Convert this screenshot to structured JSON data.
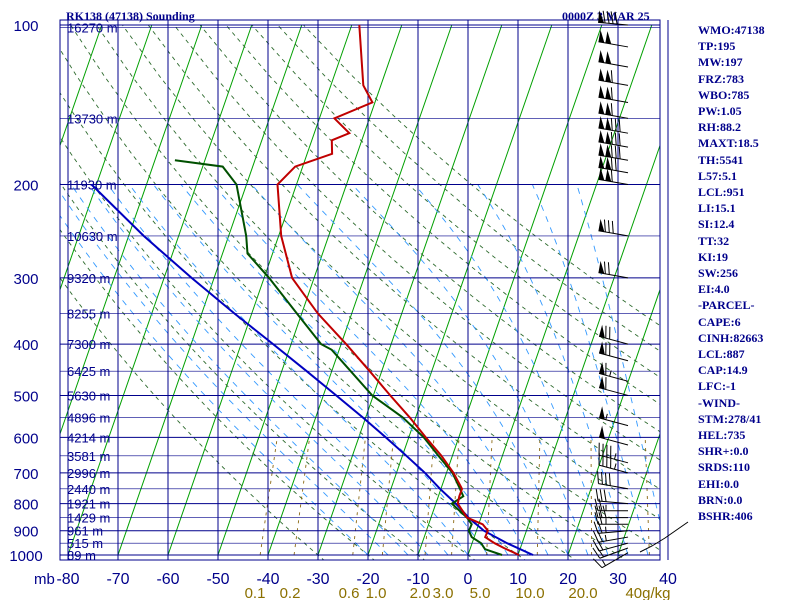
{
  "header": {
    "station_title": "RK138 (47138) Sounding",
    "time_title": "0000Z  3 MAR 25"
  },
  "indices": [
    "WMO:47138",
    "TP:195",
    "MW:197",
    "FRZ:783",
    "WBO:785",
    "PW:1.05",
    "RH:88.2",
    "MAXT:18.5",
    "TH:5541",
    "L57:5.1",
    "LCL:951",
    "LI:15.1",
    "SI:12.4",
    "TT:32",
    "KI:19",
    "SW:256",
    "EI:4.0",
    "-PARCEL-",
    "CAPE:6",
    "CINH:82663",
    "LCL:887",
    "CAP:14.9",
    "LFC:-1",
    "-WIND-",
    "STM:278/41",
    "HEL:735",
    "SHR+:0.0",
    "SRDS:110",
    "EHI:0.0",
    "BRN:0.0",
    "BSHR:406"
  ],
  "colors": {
    "grid": "#00008b",
    "isotherm": "#00a000",
    "dry_adiabat": "#2e6b2e",
    "moist_adiabat": "#3399ff",
    "mixing_ratio": "#8b6914",
    "temperature": "#c00000",
    "dewpoint": "#005000",
    "parcel": "#0000c0",
    "height_label": "#00008b",
    "mixing_label": "#8b7000",
    "wind_barb": "#000000"
  },
  "chart_data": {
    "type": "skew-t",
    "x_unit_label": "mb",
    "pressure_levels": [
      100,
      200,
      300,
      400,
      500,
      600,
      700,
      800,
      900,
      1000
    ],
    "temperature_ticks": [
      -80,
      -70,
      -60,
      -50,
      -40,
      -30,
      -20,
      -10,
      0,
      10,
      20,
      30,
      40
    ],
    "temperature_tick_labels": [
      "-80",
      "-70",
      "-60",
      "-50",
      "-40",
      "-30",
      "-20",
      "-10",
      "0",
      "10",
      "20",
      "30",
      "40"
    ],
    "mixing_ratio_labels": [
      "0.1",
      "0.2",
      "0.6",
      "1.0",
      "2.0",
      "3.0",
      "5.0",
      "10.0",
      "20.0",
      "40g/kg"
    ],
    "mixing_ratio_values": [
      0.1,
      0.2,
      0.6,
      1.0,
      2.0,
      3.0,
      5.0,
      10.0,
      20.0,
      40.0
    ],
    "height_labels": [
      {
        "p": 101,
        "label": "16270 m"
      },
      {
        "p": 150,
        "label": "13730 m"
      },
      {
        "p": 200,
        "label": "11930 m"
      },
      {
        "p": 250,
        "label": "10630 m"
      },
      {
        "p": 300,
        "label": "9320 m"
      },
      {
        "p": 350,
        "label": "8255 m"
      },
      {
        "p": 400,
        "label": "7300 m"
      },
      {
        "p": 450,
        "label": "6425 m"
      },
      {
        "p": 500,
        "label": "5630 m"
      },
      {
        "p": 550,
        "label": "4896 m"
      },
      {
        "p": 600,
        "label": "4214 m"
      },
      {
        "p": 650,
        "label": "3581 m"
      },
      {
        "p": 700,
        "label": "2996 m"
      },
      {
        "p": 750,
        "label": "2440 m"
      },
      {
        "p": 800,
        "label": "1921 m"
      },
      {
        "p": 850,
        "label": "1429 m"
      },
      {
        "p": 900,
        "label": "961 m"
      },
      {
        "p": 950,
        "label": "515 m"
      },
      {
        "p": 1000,
        "label": "89 m"
      }
    ],
    "temperature_profile": [
      {
        "p": 1000,
        "t": 10.2
      },
      {
        "p": 970,
        "t": 6.7
      },
      {
        "p": 950,
        "t": 4.5
      },
      {
        "p": 925,
        "t": 2.2
      },
      {
        "p": 900,
        "t": 2.3
      },
      {
        "p": 875,
        "t": 0.8
      },
      {
        "p": 850,
        "t": -2.8
      },
      {
        "p": 800,
        "t": -5.6
      },
      {
        "p": 775,
        "t": -5.8
      },
      {
        "p": 750,
        "t": -5.8
      },
      {
        "p": 700,
        "t": -8.6
      },
      {
        "p": 650,
        "t": -12.2
      },
      {
        "p": 600,
        "t": -16.6
      },
      {
        "p": 550,
        "t": -21.2
      },
      {
        "p": 500,
        "t": -26.6
      },
      {
        "p": 450,
        "t": -32.4
      },
      {
        "p": 400,
        "t": -39.0
      },
      {
        "p": 350,
        "t": -46.8
      },
      {
        "p": 300,
        "t": -54.4
      },
      {
        "p": 250,
        "t": -59.5
      },
      {
        "p": 200,
        "t": -63.8
      },
      {
        "p": 185,
        "t": -61.5
      },
      {
        "p": 175,
        "t": -55.0
      },
      {
        "p": 165,
        "t": -56.0
      },
      {
        "p": 160,
        "t": -53.0
      },
      {
        "p": 150,
        "t": -57.0
      },
      {
        "p": 140,
        "t": -50.5
      },
      {
        "p": 130,
        "t": -53.5
      },
      {
        "p": 100,
        "t": -58.5
      }
    ],
    "dewpoint_profile": [
      {
        "p": 1000,
        "t": 6.8
      },
      {
        "p": 975,
        "t": 3.0
      },
      {
        "p": 950,
        "t": 1.8
      },
      {
        "p": 925,
        "t": -0.5
      },
      {
        "p": 900,
        "t": -1.5
      },
      {
        "p": 875,
        "t": -1.4
      },
      {
        "p": 850,
        "t": -2.8
      },
      {
        "p": 800,
        "t": -6.8
      },
      {
        "p": 775,
        "t": -5.0
      },
      {
        "p": 750,
        "t": -6.2
      },
      {
        "p": 700,
        "t": -8.8
      },
      {
        "p": 650,
        "t": -12.8
      },
      {
        "p": 600,
        "t": -17.0
      },
      {
        "p": 550,
        "t": -22.6
      },
      {
        "p": 500,
        "t": -30.2
      },
      {
        "p": 450,
        "t": -36.2
      },
      {
        "p": 410,
        "t": -41.5
      },
      {
        "p": 400,
        "t": -44.0
      },
      {
        "p": 350,
        "t": -51.0
      },
      {
        "p": 300,
        "t": -59.0
      },
      {
        "p": 270,
        "t": -65.0
      },
      {
        "p": 250,
        "t": -66.5
      },
      {
        "p": 200,
        "t": -72.0
      },
      {
        "p": 185,
        "t": -76.0
      },
      {
        "p": 180,
        "t": -86.0
      }
    ],
    "parcel_profile": [
      {
        "p": 1000,
        "t": 13.0
      },
      {
        "p": 950,
        "t": 7.0
      },
      {
        "p": 900,
        "t": 1.5
      },
      {
        "p": 850,
        "t": -2.5
      },
      {
        "p": 800,
        "t": -6.0
      },
      {
        "p": 750,
        "t": -10.2
      },
      {
        "p": 700,
        "t": -14.3
      },
      {
        "p": 650,
        "t": -19.2
      },
      {
        "p": 600,
        "t": -24.6
      },
      {
        "p": 550,
        "t": -30.6
      },
      {
        "p": 500,
        "t": -37.4
      },
      {
        "p": 450,
        "t": -45.0
      },
      {
        "p": 400,
        "t": -53.6
      },
      {
        "p": 350,
        "t": -63.5
      },
      {
        "p": 300,
        "t": -74.5
      },
      {
        "p": 250,
        "t": -87.0
      },
      {
        "p": 200,
        "t": -101.0
      }
    ],
    "wind_profile": [
      {
        "p": 990,
        "dir": 240,
        "spd": 15
      },
      {
        "p": 970,
        "dir": 250,
        "spd": 20
      },
      {
        "p": 950,
        "dir": 255,
        "spd": 20
      },
      {
        "p": 925,
        "dir": 260,
        "spd": 25
      },
      {
        "p": 900,
        "dir": 265,
        "spd": 25
      },
      {
        "p": 875,
        "dir": 270,
        "spd": 25
      },
      {
        "p": 850,
        "dir": 270,
        "spd": 30
      },
      {
        "p": 825,
        "dir": 270,
        "spd": 25
      },
      {
        "p": 800,
        "dir": 275,
        "spd": 30
      },
      {
        "p": 750,
        "dir": 280,
        "spd": 40
      },
      {
        "p": 700,
        "dir": 285,
        "spd": 45
      },
      {
        "p": 670,
        "dir": 285,
        "spd": 45
      },
      {
        "p": 620,
        "dir": 285,
        "spd": 50
      },
      {
        "p": 570,
        "dir": 285,
        "spd": 55
      },
      {
        "p": 500,
        "dir": 285,
        "spd": 60
      },
      {
        "p": 470,
        "dir": 285,
        "spd": 65
      },
      {
        "p": 430,
        "dir": 285,
        "spd": 70
      },
      {
        "p": 400,
        "dir": 285,
        "spd": 70
      },
      {
        "p": 300,
        "dir": 280,
        "spd": 70
      },
      {
        "p": 250,
        "dir": 280,
        "spd": 80
      },
      {
        "p": 200,
        "dir": 280,
        "spd": 110
      },
      {
        "p": 190,
        "dir": 280,
        "spd": 120
      },
      {
        "p": 180,
        "dir": 280,
        "spd": 130
      },
      {
        "p": 170,
        "dir": 280,
        "spd": 130
      },
      {
        "p": 160,
        "dir": 280,
        "spd": 130
      },
      {
        "p": 150,
        "dir": 280,
        "spd": 110
      },
      {
        "p": 140,
        "dir": 280,
        "spd": 110
      },
      {
        "p": 130,
        "dir": 280,
        "spd": 110
      },
      {
        "p": 120,
        "dir": 280,
        "spd": 100
      },
      {
        "p": 110,
        "dir": 280,
        "spd": 100
      },
      {
        "p": 100,
        "dir": 275,
        "spd": 90
      }
    ],
    "hodograph_fragment": true
  }
}
